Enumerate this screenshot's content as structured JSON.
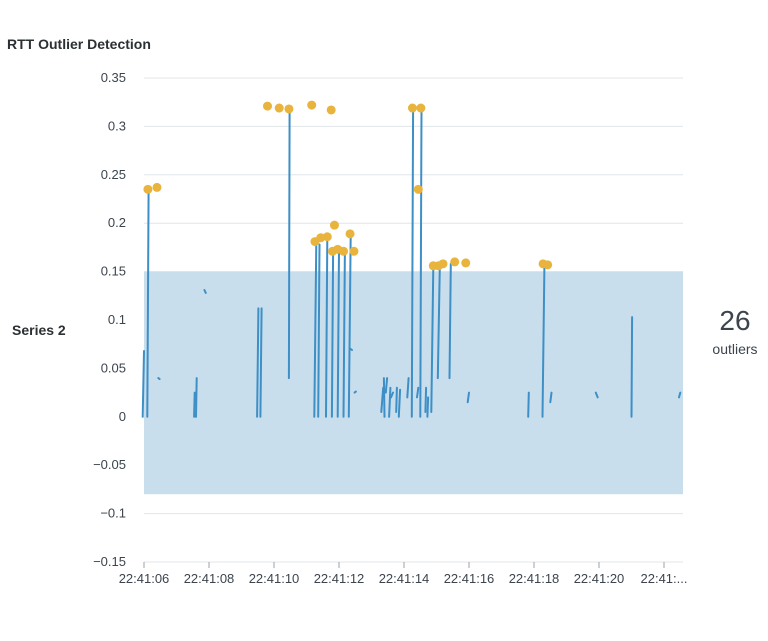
{
  "title": "RTT Outlier Detection",
  "series_label": "Series 2",
  "outlier_summary": {
    "count": "26",
    "label": "outliers"
  },
  "colors": {
    "line": "#3d8fc6",
    "band": "#c6dcec",
    "outlier": "#e8b43d",
    "grid": "#e1e6ea",
    "axis_text": "#3c444d"
  },
  "chart_data": {
    "type": "line",
    "title": "RTT Outlier Detection",
    "xlabel": "",
    "ylabel": "",
    "ylim": [
      -0.15,
      0.35
    ],
    "xlim": [
      0,
      8.3
    ],
    "y_ticks": [
      -0.15,
      -0.1,
      -0.05,
      0,
      0.05,
      0.1,
      0.15,
      0.2,
      0.25,
      0.3,
      0.35
    ],
    "y_tick_labels": [
      "−0.15",
      "−0.1",
      "−0.05",
      "0",
      "0.05",
      "0.1",
      "0.15",
      "0.2",
      "0.25",
      "0.3",
      "0.35"
    ],
    "x_ticks": [
      0,
      1,
      2,
      3,
      4,
      5,
      6,
      7,
      8
    ],
    "x_tick_labels": [
      "22:41:06",
      "22:41:08",
      "22:41:10",
      "22:41:12",
      "22:41:14",
      "22:41:16",
      "22:41:18",
      "22:41:20",
      "22:41:..."
    ],
    "x_unit": "seconds after 22:41:06 (tick spacing 2 s)",
    "band": {
      "lower": -0.08,
      "upper": 0.15
    },
    "grid": true,
    "series": [
      {
        "segments": [
          [
            [
              -0.02,
              0.0
            ],
            [
              0.0,
              0.068
            ]
          ],
          [
            [
              0.05,
              0.0
            ],
            [
              0.07,
              0.235
            ]
          ],
          [
            [
              0.22,
              0.04
            ],
            [
              0.24,
              0.039
            ]
          ],
          [
            [
              0.77,
              0.0
            ],
            [
              0.78,
              0.025
            ]
          ],
          [
            [
              0.8,
              0.0
            ],
            [
              0.81,
              0.04
            ]
          ],
          [
            [
              0.93,
              0.131
            ],
            [
              0.95,
              0.128
            ]
          ],
          [
            [
              1.74,
              0.0
            ],
            [
              1.76,
              0.112
            ]
          ],
          [
            [
              1.79,
              0.0
            ],
            [
              1.81,
              0.112
            ]
          ],
          [
            [
              2.23,
              0.04
            ],
            [
              2.24,
              0.318
            ]
          ],
          [
            [
              2.62,
              0.0
            ],
            [
              2.65,
              0.18
            ]
          ],
          [
            [
              2.68,
              0.0
            ],
            [
              2.7,
              0.178
            ]
          ],
          [
            [
              2.8,
              0.0
            ],
            [
              2.82,
              0.185
            ]
          ],
          [
            [
              2.89,
              0.0
            ],
            [
              2.91,
              0.17
            ]
          ],
          [
            [
              2.98,
              0.0
            ],
            [
              3.0,
              0.172
            ]
          ],
          [
            [
              3.07,
              0.0
            ],
            [
              3.09,
              0.172
            ]
          ],
          [
            [
              3.15,
              0.0
            ],
            [
              3.18,
              0.188
            ]
          ],
          [
            [
              3.18,
              0.07
            ],
            [
              3.2,
              0.069
            ]
          ],
          [
            [
              3.24,
              0.025
            ],
            [
              3.26,
              0.026
            ]
          ],
          [
            [
              3.65,
              0.005
            ],
            [
              3.68,
              0.03
            ]
          ],
          [
            [
              3.69,
              0.04
            ],
            [
              3.7,
              0.0
            ]
          ],
          [
            [
              3.72,
              0.025
            ],
            [
              3.74,
              0.04
            ]
          ],
          [
            [
              3.77,
              0.0
            ],
            [
              3.79,
              0.03
            ]
          ],
          [
            [
              3.8,
              0.02
            ],
            [
              3.83,
              0.025
            ]
          ],
          [
            [
              3.88,
              0.005
            ],
            [
              3.89,
              0.03
            ]
          ],
          [
            [
              3.92,
              0.0
            ],
            [
              3.94,
              0.028
            ]
          ],
          [
            [
              4.05,
              0.02
            ],
            [
              4.07,
              0.04
            ]
          ],
          [
            [
              4.12,
              0.0
            ],
            [
              4.14,
              0.319
            ]
          ],
          [
            [
              4.2,
              0.02
            ],
            [
              4.22,
              0.03
            ]
          ],
          [
            [
              4.25,
              0.0
            ],
            [
              4.27,
              0.319
            ]
          ],
          [
            [
              4.33,
              0.005
            ],
            [
              4.34,
              0.03
            ]
          ],
          [
            [
              4.36,
              0.0
            ],
            [
              4.37,
              0.02
            ]
          ],
          [
            [
              4.42,
              0.005
            ],
            [
              4.45,
              0.155
            ]
          ],
          [
            [
              4.52,
              0.04
            ],
            [
              4.55,
              0.155
            ]
          ],
          [
            [
              4.7,
              0.04
            ],
            [
              4.72,
              0.158
            ]
          ],
          [
            [
              4.98,
              0.015
            ],
            [
              5.0,
              0.025
            ]
          ],
          [
            [
              5.91,
              0.0
            ],
            [
              5.92,
              0.025
            ]
          ],
          [
            [
              6.13,
              0.0
            ],
            [
              6.16,
              0.155
            ]
          ],
          [
            [
              6.25,
              0.015
            ],
            [
              6.27,
              0.025
            ]
          ],
          [
            [
              6.95,
              0.025
            ],
            [
              6.98,
              0.02
            ]
          ],
          [
            [
              7.5,
              0.0
            ],
            [
              7.51,
              0.103
            ]
          ],
          [
            [
              8.23,
              0.02
            ],
            [
              8.25,
              0.025
            ]
          ]
        ]
      }
    ],
    "outliers": [
      {
        "x": 0.06,
        "y": 0.235
      },
      {
        "x": 0.2,
        "y": 0.237
      },
      {
        "x": 1.9,
        "y": 0.321
      },
      {
        "x": 2.08,
        "y": 0.319
      },
      {
        "x": 2.23,
        "y": 0.318
      },
      {
        "x": 2.58,
        "y": 0.322
      },
      {
        "x": 2.88,
        "y": 0.317
      },
      {
        "x": 2.63,
        "y": 0.181
      },
      {
        "x": 2.72,
        "y": 0.185
      },
      {
        "x": 2.82,
        "y": 0.186
      },
      {
        "x": 2.93,
        "y": 0.198
      },
      {
        "x": 2.9,
        "y": 0.171
      },
      {
        "x": 2.98,
        "y": 0.173
      },
      {
        "x": 3.07,
        "y": 0.171
      },
      {
        "x": 3.17,
        "y": 0.189
      },
      {
        "x": 3.23,
        "y": 0.171
      },
      {
        "x": 4.13,
        "y": 0.319
      },
      {
        "x": 4.22,
        "y": 0.235
      },
      {
        "x": 4.26,
        "y": 0.319
      },
      {
        "x": 4.45,
        "y": 0.156
      },
      {
        "x": 4.53,
        "y": 0.156
      },
      {
        "x": 4.6,
        "y": 0.158
      },
      {
        "x": 4.78,
        "y": 0.16
      },
      {
        "x": 4.95,
        "y": 0.159
      },
      {
        "x": 6.14,
        "y": 0.158
      },
      {
        "x": 6.21,
        "y": 0.157
      }
    ]
  }
}
